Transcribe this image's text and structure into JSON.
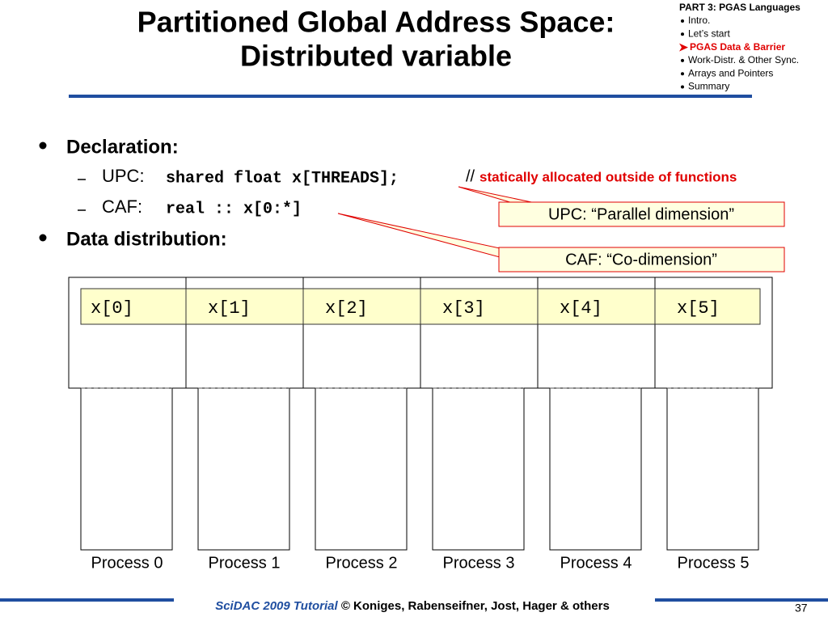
{
  "title": [
    "Partitioned Global Address Space:",
    "Distributed variable"
  ],
  "nav": {
    "heading": "PART 3: PGAS Languages",
    "items": [
      "Intro.",
      "Let’s start",
      "PGAS Data & Barrier",
      "Work-Distr. & Other Sync.",
      "Arrays and Pointers",
      "Summary"
    ]
  },
  "bullets": [
    {
      "text": "Declaration:",
      "sub": [
        {
          "label": "UPC:",
          "code": "shared float x[THREADS];",
          "comment_mark": "//",
          "comment": "statically allocated outside of functions"
        },
        {
          "label": "CAF:",
          "code": "real :: x[0:*]"
        }
      ]
    },
    {
      "text": "Data distribution:"
    }
  ],
  "callouts": [
    "UPC: “Parallel dimension”",
    "CAF: “Co-dimension”"
  ],
  "cells": [
    "x[0]",
    "x[1]",
    "x[2]",
    "x[3]",
    "x[4]",
    "x[5]"
  ],
  "processes": [
    "Process 0",
    "Process 1",
    "Process 2",
    "Process 3",
    "Process 4",
    "Process 5"
  ],
  "footer": {
    "event": "SciDAC 2009 Tutorial",
    "authors": "© Koniges, Rabenseifner, Jost, Hager & others",
    "page": "37"
  }
}
